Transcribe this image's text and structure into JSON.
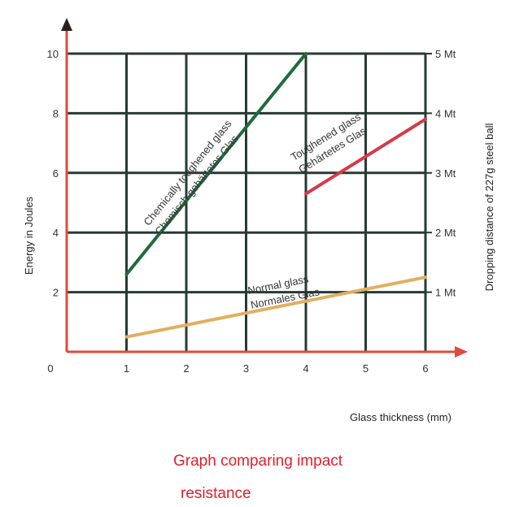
{
  "chart_data": {
    "type": "line",
    "xlabel": "Glass thickness (mm)",
    "ylabel": "Energy in Joules",
    "y2label": "Dropping distance of 227g steel ball",
    "xlim": [
      0,
      6
    ],
    "ylim": [
      0,
      10
    ],
    "x_ticks": [
      "0",
      "1",
      "2",
      "3",
      "4",
      "5",
      "6"
    ],
    "y_ticks": [
      "2",
      "4",
      "6",
      "8",
      "10"
    ],
    "y2_ticks": [
      "1 Mt",
      "2 Mt",
      "3 Mt",
      "4 Mt",
      "5 Mt"
    ],
    "grid": true,
    "series": [
      {
        "name": "Chemically toughened glass",
        "name2": "Chemisch gehärtetes Glas",
        "color": "#1e6b3a",
        "x": [
          1,
          4
        ],
        "y": [
          2.6,
          10
        ]
      },
      {
        "name": "Toughened glass",
        "name2": "Gehärtetes Glas",
        "color": "#d63a4a",
        "x": [
          4,
          6
        ],
        "y": [
          5.3,
          7.8
        ]
      },
      {
        "name": "Normal glass",
        "name2": "Normales Glas",
        "color": "#e0b060",
        "x": [
          1,
          6
        ],
        "y": [
          0.5,
          2.5
        ]
      }
    ]
  },
  "caption": {
    "line1": "Graph comparing impact",
    "line2": "resistance",
    "color": "#e0202a"
  },
  "colors": {
    "axis": "#e04a3a",
    "grid": "#263a33",
    "axis_arrow_top": "#2a2020"
  }
}
